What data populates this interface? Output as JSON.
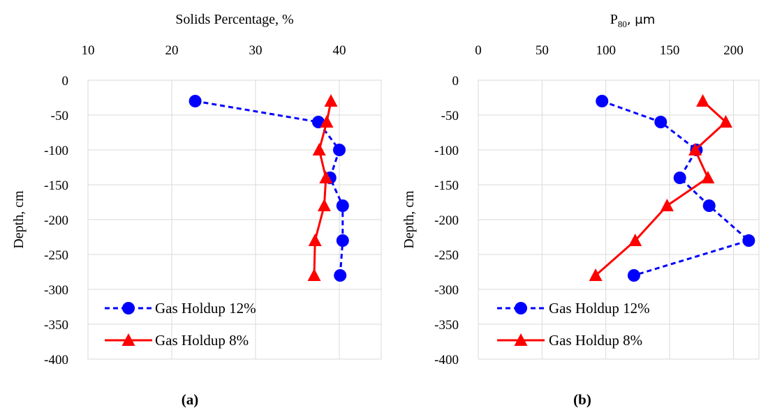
{
  "chart_data": [
    {
      "type": "line",
      "panel_label": "(a)",
      "xlabel": "Solids Percentage, %",
      "ylabel": "Depth, cm",
      "x_axis_position": "top",
      "xlim": [
        10,
        45
      ],
      "ylim": [
        -400,
        0
      ],
      "x_ticks": [
        10,
        20,
        30,
        40
      ],
      "y_ticks": [
        0,
        -50,
        -100,
        -150,
        -200,
        -250,
        -300,
        -350,
        -400
      ],
      "grid": true,
      "legend_position": "bottom-left",
      "series": [
        {
          "name": "Gas Holdup 12%",
          "color": "#0000ff",
          "line_style": "dashed",
          "marker": "circle",
          "x": [
            22.8,
            37.5,
            40.0,
            38.9,
            40.4,
            40.4,
            40.1
          ],
          "y": [
            -30,
            -60,
            -100,
            -140,
            -180,
            -230,
            -280
          ]
        },
        {
          "name": "Gas Holdup 8%",
          "color": "#ff0000",
          "line_style": "solid",
          "marker": "triangle",
          "x": [
            39.0,
            38.5,
            37.6,
            38.4,
            38.2,
            37.1,
            37.0
          ],
          "y": [
            -30,
            -60,
            -100,
            -140,
            -180,
            -230,
            -280
          ]
        }
      ]
    },
    {
      "type": "line",
      "panel_label": "(b)",
      "xlabel_main": "P",
      "xlabel_sub": "80",
      "xlabel_rest": ", μm",
      "ylabel": "Depth, cm",
      "x_axis_position": "top",
      "xlim": [
        0,
        220
      ],
      "ylim": [
        -400,
        0
      ],
      "x_ticks": [
        0,
        50,
        100,
        150,
        200
      ],
      "y_ticks": [
        0,
        -50,
        -100,
        -150,
        -200,
        -250,
        -300,
        -350,
        -400
      ],
      "grid": true,
      "legend_position": "bottom-left",
      "series": [
        {
          "name": "Gas Holdup 12%",
          "color": "#0000ff",
          "line_style": "dashed",
          "marker": "circle",
          "x": [
            97,
            143,
            171,
            158,
            181,
            212,
            122
          ],
          "y": [
            -30,
            -60,
            -100,
            -140,
            -180,
            -230,
            -280
          ]
        },
        {
          "name": "Gas Holdup 8%",
          "color": "#ff0000",
          "line_style": "solid",
          "marker": "triangle",
          "x": [
            176,
            194,
            170,
            180,
            148,
            123,
            92
          ],
          "y": [
            -30,
            -60,
            -100,
            -140,
            -180,
            -230,
            -280
          ]
        }
      ]
    }
  ]
}
